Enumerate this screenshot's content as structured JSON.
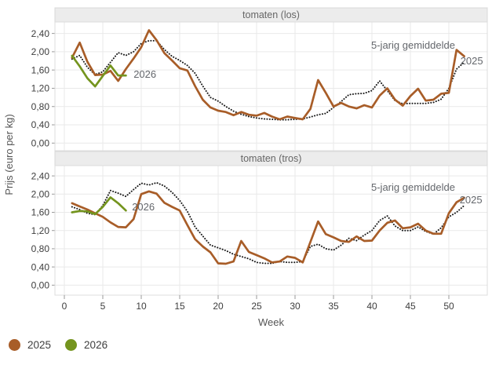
{
  "figure": {
    "x_axis_label": "Week",
    "y_axis_label": "Prijs (euro per kg)"
  },
  "colors": {
    "line_2025": "#a85d28",
    "line_2026": "#74941e",
    "line_average": "#1b1b1b",
    "grid": "#e9e9e9",
    "panel_strip_bg": "#ececec",
    "panel_strip_border": "#d8d8d8",
    "tick_text": "#3e3e3e",
    "annotation_text": "#64676c"
  },
  "legend": {
    "position": "bottom-left",
    "items": [
      {
        "label": "2025",
        "color": "#a85d28"
      },
      {
        "label": "2026",
        "color": "#74941e"
      }
    ]
  },
  "chart_data": [
    {
      "type": "line",
      "title": "tomaten (los)",
      "xlabel": "Week",
      "ylabel": "Prijs (euro per kg)",
      "xlim": [
        0,
        55
      ],
      "ylim": [
        0,
        2.65
      ],
      "grid": true,
      "x_ticks": [
        0,
        5,
        10,
        15,
        20,
        25,
        30,
        35,
        40,
        45,
        50
      ],
      "y_ticks": [
        "0,00",
        "0,40",
        "0,80",
        "1,20",
        "1,60",
        "2,00",
        "2,40"
      ],
      "y_tick_values": [
        0,
        0.4,
        0.8,
        1.2,
        1.6,
        2.0,
        2.4
      ],
      "series": [
        {
          "name": "5-jarig gemiddelde",
          "color": "#1b1b1b",
          "style": "dotted",
          "x0": 1,
          "values": [
            1.84,
            1.92,
            1.66,
            1.5,
            1.56,
            1.77,
            1.98,
            1.92,
            2.0,
            2.18,
            2.24,
            2.24,
            2.05,
            1.9,
            1.81,
            1.7,
            1.53,
            1.25,
            1.0,
            0.92,
            0.8,
            0.7,
            0.63,
            0.58,
            0.55,
            0.53,
            0.52,
            0.51,
            0.51,
            0.52,
            0.53,
            0.57,
            0.62,
            0.65,
            0.78,
            0.91,
            1.06,
            1.08,
            1.09,
            1.15,
            1.36,
            1.15,
            0.93,
            0.86,
            0.87,
            0.87,
            0.87,
            0.89,
            0.96,
            1.2,
            1.62,
            1.77
          ]
        },
        {
          "name": "2025",
          "color": "#a85d28",
          "style": "solid",
          "x0": 1,
          "values": [
            1.87,
            2.2,
            1.78,
            1.49,
            1.5,
            1.58,
            1.36,
            1.62,
            1.85,
            2.1,
            2.47,
            2.25,
            1.97,
            1.81,
            1.64,
            1.59,
            1.25,
            0.95,
            0.78,
            0.71,
            0.68,
            0.61,
            0.68,
            0.62,
            0.6,
            0.66,
            0.58,
            0.52,
            0.58,
            0.55,
            0.52,
            0.75,
            1.38,
            1.1,
            0.8,
            0.88,
            0.8,
            0.76,
            0.83,
            0.78,
            1.04,
            1.2,
            0.95,
            0.82,
            1.03,
            1.19,
            0.93,
            0.95,
            1.08,
            1.1,
            2.04,
            1.9
          ]
        },
        {
          "name": "2026",
          "color": "#74941e",
          "style": "solid",
          "x0": 1,
          "values": [
            1.91,
            1.68,
            1.42,
            1.24,
            1.47,
            1.7,
            1.48,
            1.48
          ]
        }
      ],
      "annotations": [
        {
          "text": "5-jarig gemiddelde",
          "x": 39.9,
          "y": 2.07
        },
        {
          "text": "2025",
          "x": 51.5,
          "y": 1.72
        },
        {
          "text": "2026",
          "x": 9.0,
          "y": 1.43
        }
      ]
    },
    {
      "type": "line",
      "title": "tomaten (tros)",
      "xlabel": "Week",
      "ylabel": "Prijs (euro per kg)",
      "xlim": [
        0,
        55
      ],
      "ylim": [
        0,
        2.65
      ],
      "grid": true,
      "x_ticks": [
        0,
        5,
        10,
        15,
        20,
        25,
        30,
        35,
        40,
        45,
        50
      ],
      "y_ticks": [
        "0,00",
        "0,40",
        "0,80",
        "1,20",
        "1,60",
        "2,00",
        "2,40"
      ],
      "y_tick_values": [
        0,
        0.4,
        0.8,
        1.2,
        1.6,
        2.0,
        2.4
      ],
      "series": [
        {
          "name": "5-jarig gemiddelde",
          "color": "#1b1b1b",
          "style": "dotted",
          "x0": 1,
          "values": [
            1.72,
            1.66,
            1.58,
            1.55,
            1.75,
            2.08,
            2.02,
            1.95,
            2.1,
            2.24,
            2.2,
            2.25,
            2.18,
            2.04,
            1.86,
            1.62,
            1.28,
            1.08,
            0.88,
            0.82,
            0.76,
            0.68,
            0.63,
            0.58,
            0.5,
            0.48,
            0.48,
            0.52,
            0.5,
            0.5,
            0.52,
            0.85,
            0.9,
            0.8,
            0.77,
            0.88,
            1.03,
            0.98,
            1.1,
            1.2,
            1.42,
            1.52,
            1.3,
            1.2,
            1.2,
            1.28,
            1.18,
            1.12,
            1.26,
            1.5,
            1.6,
            1.75
          ]
        },
        {
          "name": "2025",
          "color": "#a85d28",
          "style": "solid",
          "x0": 1,
          "values": [
            1.8,
            1.73,
            1.66,
            1.58,
            1.5,
            1.38,
            1.28,
            1.27,
            1.45,
            2.0,
            2.06,
            2.01,
            1.81,
            1.72,
            1.64,
            1.32,
            1.01,
            0.85,
            0.72,
            0.48,
            0.47,
            0.52,
            0.97,
            0.73,
            0.66,
            0.59,
            0.5,
            0.52,
            0.63,
            0.6,
            0.5,
            0.95,
            1.4,
            1.12,
            1.05,
            0.97,
            0.95,
            1.07,
            0.97,
            0.98,
            1.2,
            1.37,
            1.42,
            1.25,
            1.27,
            1.35,
            1.2,
            1.13,
            1.13,
            1.58,
            1.82,
            1.92
          ]
        },
        {
          "name": "2026",
          "color": "#74941e",
          "style": "solid",
          "x0": 1,
          "values": [
            1.6,
            1.63,
            1.62,
            1.56,
            1.72,
            1.93,
            1.8,
            1.64
          ]
        }
      ],
      "annotations": [
        {
          "text": "5-jarig gemiddelde",
          "x": 39.9,
          "y": 2.07
        },
        {
          "text": "2025",
          "x": 51.4,
          "y": 1.8
        },
        {
          "text": "2026",
          "x": 8.8,
          "y": 1.64
        }
      ]
    }
  ]
}
